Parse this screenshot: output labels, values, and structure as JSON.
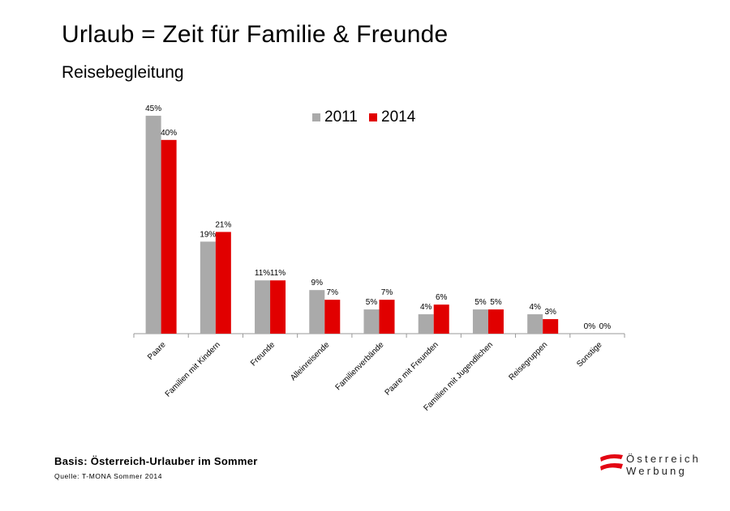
{
  "page": {
    "title": "Urlaub = Zeit für Familie & Freunde",
    "subtitle": "Reisebegleitung",
    "basis": "Basis: Österreich-Urlauber im Sommer",
    "quelle": "Quelle: T-MONA Sommer 2014",
    "logo": {
      "line1": "Österreich",
      "line2": "Werbung"
    }
  },
  "colors": {
    "series_2011": "#aaaaaa",
    "series_2014": "#e10000",
    "axis": "#999999",
    "logo_red": "#e30613"
  },
  "chart_data": {
    "type": "bar",
    "categories": [
      "Paare",
      "Familien mit Kindern",
      "Freunde",
      "Alleinreisende",
      "Familienverbände",
      "Paare mit Freunden",
      "Familien mit Jugendlichen",
      "Reisegruppen",
      "Sonstige"
    ],
    "series": [
      {
        "name": "2011",
        "values": [
          45,
          19,
          11,
          9,
          5,
          4,
          5,
          4,
          0
        ],
        "labels": [
          "45%",
          "19%",
          "11%",
          "9%",
          "5%",
          "4%",
          "5%",
          "4%",
          "0%"
        ]
      },
      {
        "name": "2014",
        "values": [
          40,
          21,
          11,
          7,
          7,
          6,
          5,
          3,
          0
        ],
        "labels": [
          "40%",
          "21%",
          "11%",
          "7%",
          "7%",
          "6%",
          "5%",
          "3%",
          "0%"
        ]
      }
    ],
    "ylim": [
      0,
      50
    ],
    "legend_position": "top-center",
    "grid": false
  }
}
